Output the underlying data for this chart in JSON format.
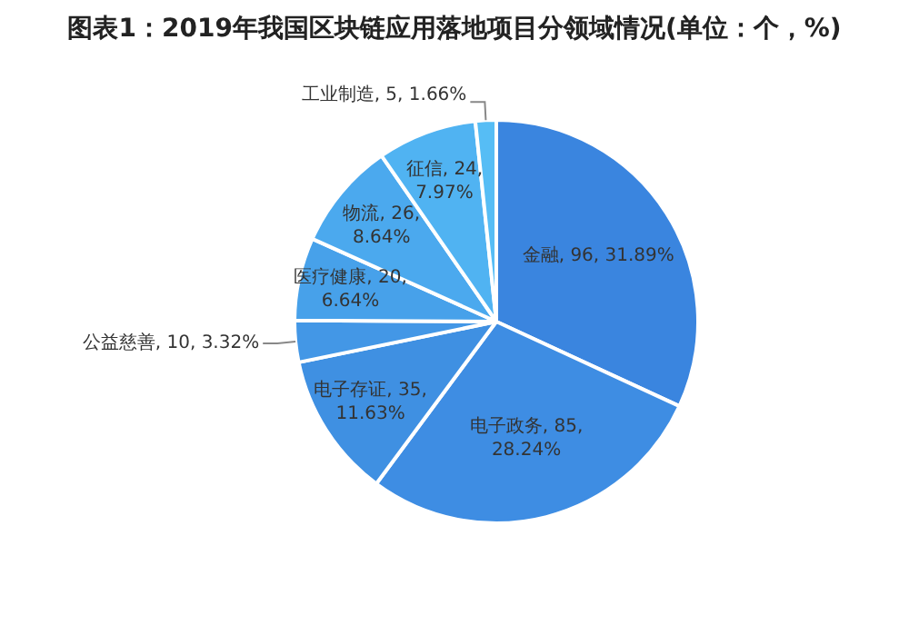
{
  "chart_data": {
    "type": "pie",
    "title": "图表1：2019年我国区块链应用落地项目分领域情况(单位：个，%)",
    "categories": [
      "金融",
      "电子政务",
      "电子存证",
      "公益慈善",
      "医疗健康",
      "物流",
      "征信",
      "工业制造"
    ],
    "values": [
      96,
      85,
      35,
      10,
      20,
      26,
      24,
      5
    ],
    "colors": [
      "#3a85df",
      "#3e8de3",
      "#3f90e2",
      "#4397e6",
      "#47a1ea",
      "#4ba9ee",
      "#50b3f2",
      "#56bdf5"
    ],
    "value_labels": [
      "96, 31.89%",
      "85, 28.24%",
      "35, 11.63%",
      "10, 3.32%",
      "20, 6.64%",
      "26, 8.64%",
      "24, 7.97%",
      "5, 1.66%"
    ]
  }
}
